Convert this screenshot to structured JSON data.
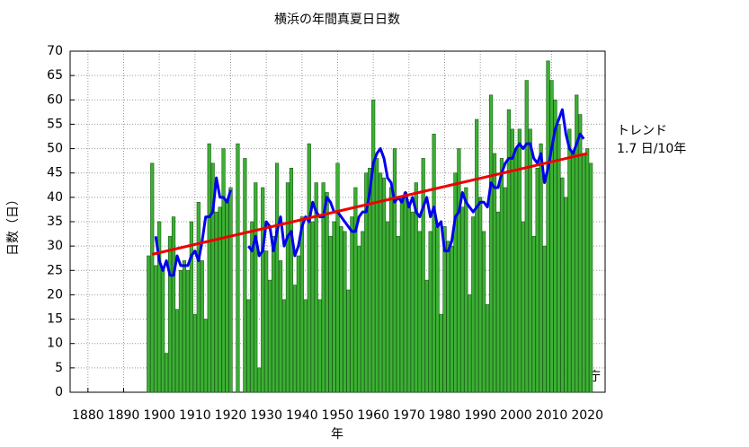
{
  "chart_data": {
    "type": "bar",
    "title": "横浜の年間真夏日日数",
    "xlabel": "年",
    "ylabel": "日数（日）",
    "annotations": [
      "トレンド",
      "1.7 日/10年"
    ],
    "credit": "気象庁",
    "xlim": [
      1875,
      2025
    ],
    "ylim": [
      0,
      70
    ],
    "xticks": [
      1880,
      1890,
      1900,
      1910,
      1920,
      1930,
      1940,
      1950,
      1960,
      1970,
      1980,
      1990,
      2000,
      2010,
      2020
    ],
    "yticks": [
      0,
      5,
      10,
      15,
      20,
      25,
      30,
      35,
      40,
      45,
      50,
      55,
      60,
      65,
      70
    ],
    "grid": true,
    "x": [
      1897,
      1898,
      1899,
      1900,
      1901,
      1902,
      1903,
      1904,
      1905,
      1906,
      1907,
      1908,
      1909,
      1910,
      1911,
      1912,
      1913,
      1914,
      1915,
      1916,
      1917,
      1918,
      1919,
      1920,
      1921,
      1922,
      1923,
      1924,
      1925,
      1926,
      1927,
      1928,
      1929,
      1930,
      1931,
      1932,
      1933,
      1934,
      1935,
      1936,
      1937,
      1938,
      1939,
      1940,
      1941,
      1942,
      1943,
      1944,
      1945,
      1946,
      1947,
      1948,
      1949,
      1950,
      1951,
      1952,
      1953,
      1954,
      1955,
      1956,
      1957,
      1958,
      1959,
      1960,
      1961,
      1962,
      1963,
      1964,
      1965,
      1966,
      1967,
      1968,
      1969,
      1970,
      1971,
      1972,
      1973,
      1974,
      1975,
      1976,
      1977,
      1978,
      1979,
      1980,
      1981,
      1982,
      1983,
      1984,
      1985,
      1986,
      1987,
      1988,
      1989,
      1990,
      1991,
      1992,
      1993,
      1994,
      1995,
      1996,
      1997,
      1998,
      1999,
      2000,
      2001,
      2002,
      2003,
      2004,
      2005,
      2006,
      2007,
      2008,
      2009,
      2010,
      2011,
      2012,
      2013,
      2014,
      2015,
      2016,
      2017,
      2018,
      2019,
      2020,
      2021
    ],
    "series": [
      {
        "type": "bar",
        "color": "#3cb034",
        "values": [
          28,
          47,
          26,
          35,
          25,
          8,
          32,
          36,
          17,
          25,
          27,
          25,
          35,
          16,
          39,
          27,
          15,
          51,
          47,
          37,
          38,
          50,
          39,
          42,
          null,
          51,
          null,
          48,
          19,
          35,
          43,
          5,
          42,
          29,
          23,
          32,
          47,
          27,
          19,
          43,
          46,
          22,
          28,
          36,
          19,
          51,
          35,
          43,
          19,
          43,
          41,
          32,
          35,
          47,
          34,
          33,
          21,
          36,
          42,
          30,
          33,
          45,
          46,
          60,
          48,
          45,
          44,
          35,
          42,
          50,
          32,
          40,
          41,
          38,
          37,
          43,
          33,
          48,
          23,
          33,
          53,
          34,
          16,
          34,
          31,
          30,
          45,
          50,
          38,
          42,
          20,
          36,
          56,
          40,
          33,
          18,
          61,
          49,
          37,
          48,
          42,
          58,
          54,
          50,
          54,
          35,
          64,
          54,
          32,
          46,
          51,
          30,
          68,
          64,
          60,
          55,
          44,
          40,
          54,
          49,
          61,
          57,
          49,
          50,
          47
        ]
      },
      {
        "type": "line",
        "color": "#0000ee",
        "values": [
          null,
          null,
          32,
          27,
          25,
          27,
          24,
          24,
          28,
          26,
          26,
          26,
          28,
          29,
          27,
          31,
          36,
          36,
          37,
          44,
          40,
          40,
          39,
          41.5,
          null,
          null,
          null,
          null,
          30,
          29,
          32,
          28,
          29,
          35,
          34,
          29,
          33,
          36,
          30,
          32,
          33,
          28,
          30,
          34,
          36,
          35,
          39,
          37,
          36,
          36,
          40,
          39,
          37,
          37,
          36,
          35,
          34,
          33,
          33,
          36,
          37,
          37,
          41,
          47,
          49,
          50,
          48,
          44,
          43,
          39,
          40,
          39,
          41,
          38,
          40,
          37,
          36,
          38,
          40,
          36,
          38,
          34,
          35,
          29,
          29,
          31,
          36,
          37,
          41,
          39,
          38,
          37,
          38,
          39,
          39,
          38,
          43,
          42,
          42,
          45,
          47,
          48,
          48,
          50,
          51,
          50,
          51,
          51,
          48,
          47,
          49,
          43,
          46,
          50,
          54,
          56,
          58,
          53,
          50,
          49,
          51,
          53,
          52,
          null,
          null
        ]
      }
    ],
    "trend": {
      "color": "#ee0000",
      "x": [
        1898,
        2020
      ],
      "values": [
        28.3,
        49
      ]
    }
  }
}
